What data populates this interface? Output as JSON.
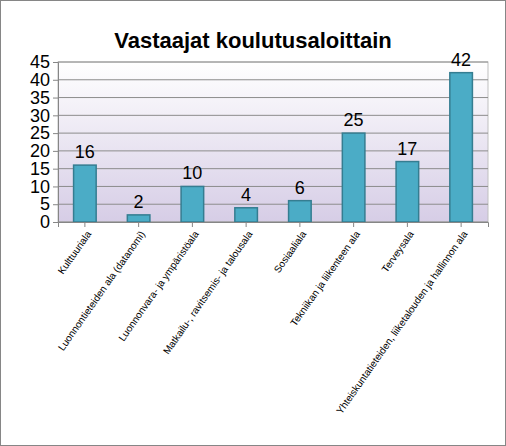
{
  "chart_data": {
    "type": "bar",
    "title": "Vastaajat koulutusaloittain",
    "categories": [
      "Kulttuuriala",
      "Luonnontieteiden ala (datanomi)",
      "Luonnonvara- ja ympäristöala",
      "Matkailu-, ravitsemis- ja talousala",
      "Sosiaaliala",
      "Tekniikan ja liikenteen ala",
      "Terveysala",
      "Yhteiskuntatieteiden, liiketalouden ja hallinnon ala"
    ],
    "values": [
      16,
      2,
      10,
      4,
      6,
      25,
      17,
      42
    ],
    "color": "#4bacc6",
    "ylim": [
      0,
      45
    ],
    "yticks": [
      0,
      5,
      10,
      15,
      20,
      25,
      30,
      35,
      40,
      45
    ],
    "grid": true,
    "data_labels": true
  }
}
